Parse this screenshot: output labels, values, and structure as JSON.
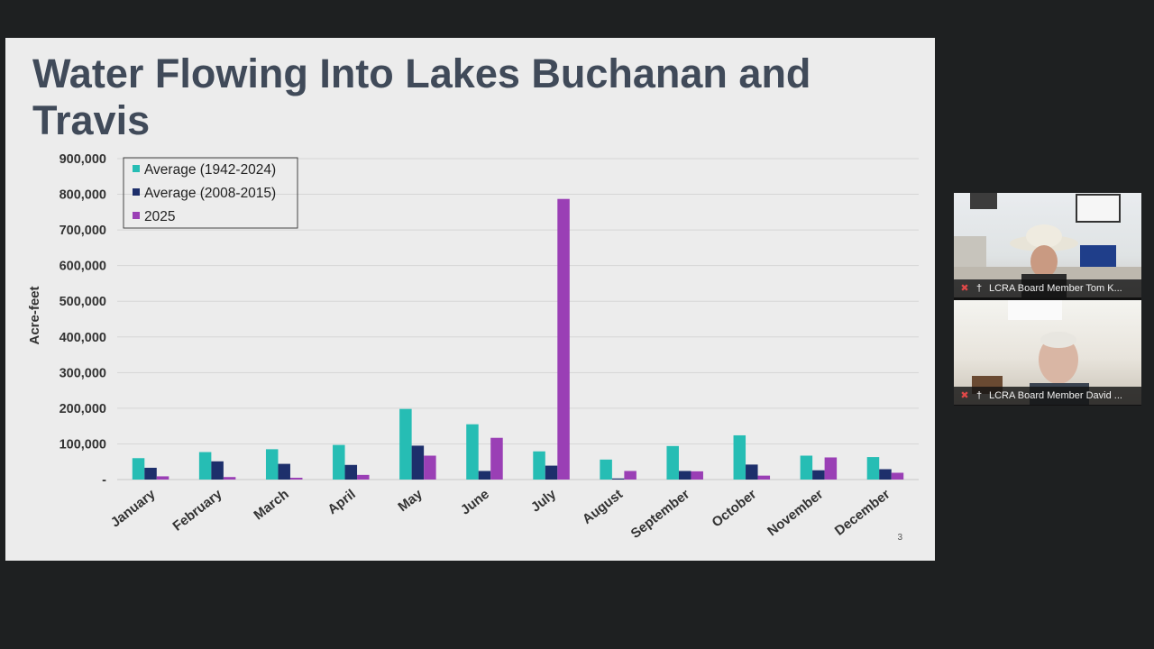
{
  "slide": {
    "title": "Water Flowing Into Lakes Buchanan and Travis",
    "page_number": "3"
  },
  "chart_data": {
    "type": "bar",
    "title": "",
    "xlabel": "",
    "ylabel": "Acre-feet",
    "ylim": [
      0,
      900000
    ],
    "yticks": [
      "-",
      "100,000",
      "200,000",
      "300,000",
      "400,000",
      "500,000",
      "600,000",
      "700,000",
      "800,000",
      "900,000"
    ],
    "grid": true,
    "legend_position": "top-left",
    "categories": [
      "January",
      "February",
      "March",
      "April",
      "May",
      "June",
      "July",
      "August",
      "September",
      "October",
      "November",
      "December"
    ],
    "series": [
      {
        "name": "Average (1942-2024)",
        "color": "#26bdb4",
        "values": [
          60000,
          77000,
          85000,
          97000,
          198000,
          155000,
          79000,
          56000,
          94000,
          124000,
          67000,
          63000
        ]
      },
      {
        "name": "Average (2008-2015)",
        "color": "#1d2f6b",
        "values": [
          33000,
          51000,
          44000,
          41000,
          95000,
          24000,
          39000,
          3000,
          24000,
          42000,
          26000,
          29000
        ]
      },
      {
        "name": "2025",
        "color": "#9a3fb5",
        "values": [
          9000,
          7000,
          5000,
          13000,
          67000,
          117000,
          787000,
          24000,
          23000,
          11000,
          62000,
          19000
        ]
      }
    ]
  },
  "participants": [
    {
      "name": "LCRA Board Member Tom K...",
      "muted_icon": "mic-off-icon",
      "pin_icon": "pin-icon"
    },
    {
      "name": "LCRA Board Member David ...",
      "muted_icon": "mic-off-icon",
      "pin_icon": "pin-icon"
    }
  ]
}
